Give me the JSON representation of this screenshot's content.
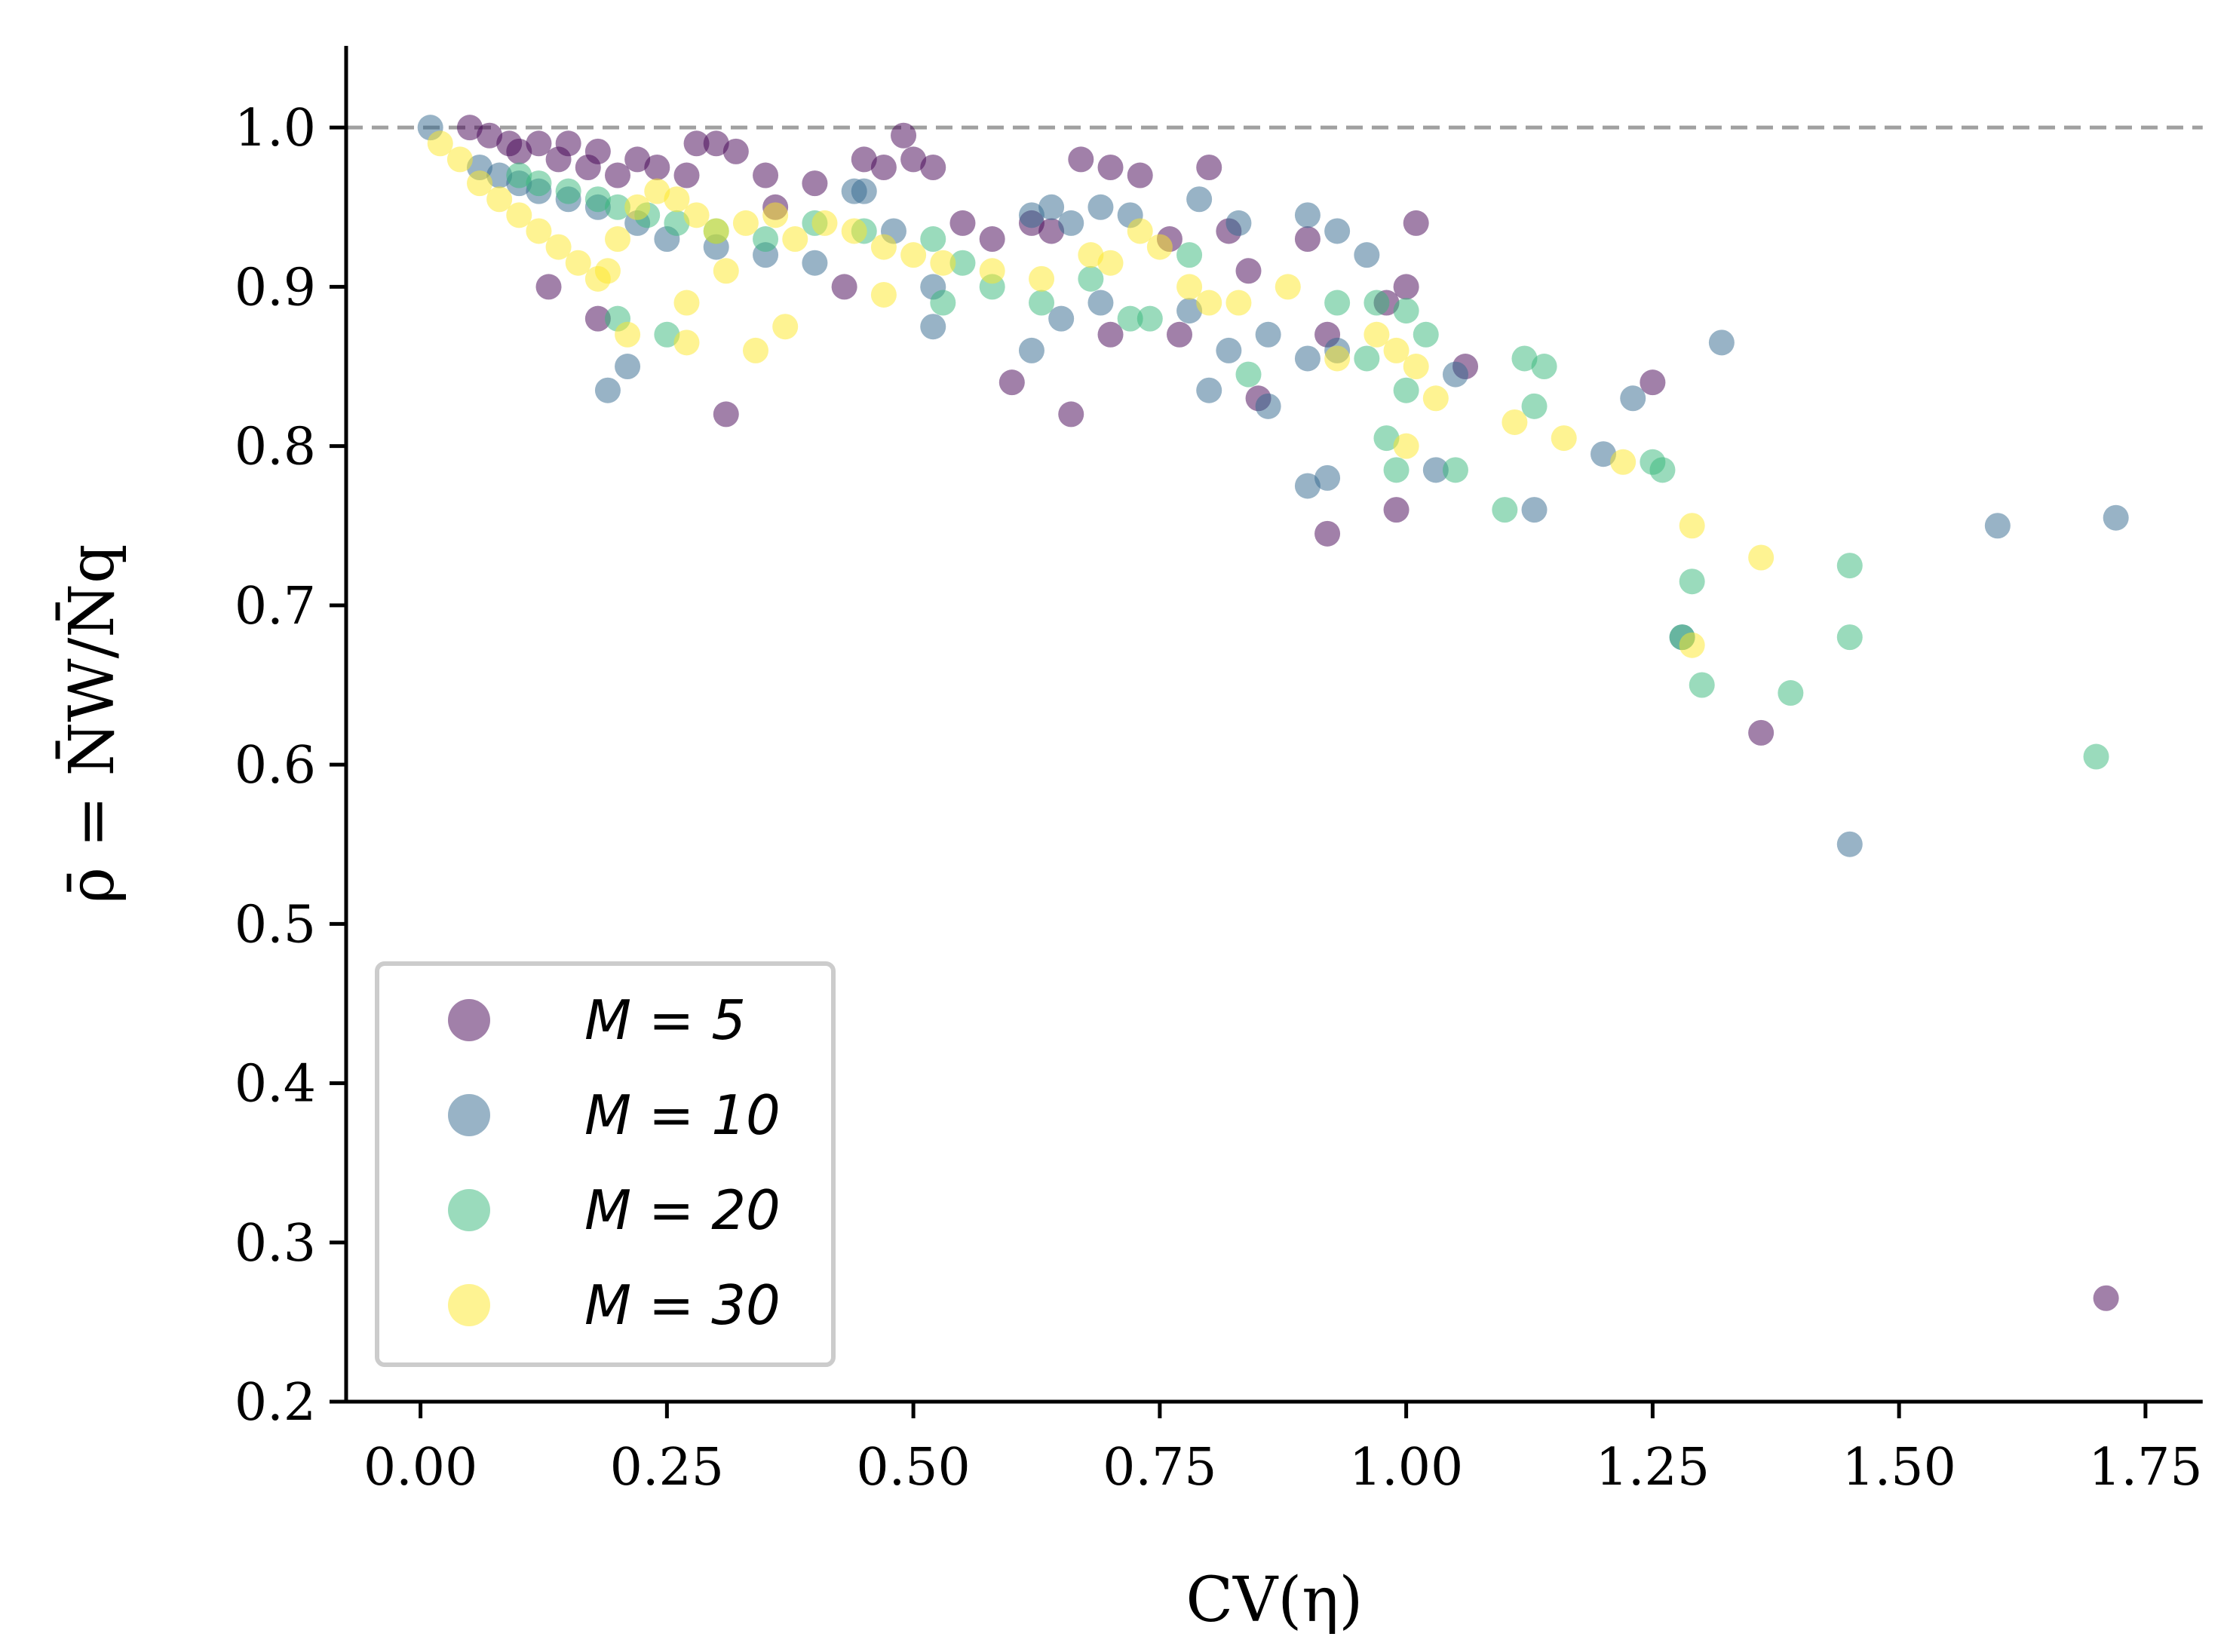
{
  "chart_data": {
    "type": "scatter",
    "title": "",
    "xlabel": "CV(η)",
    "ylabel": "ρ̄ = N̄W/N̄q",
    "xlim": [
      -0.075,
      1.81
    ],
    "ylim": [
      0.2,
      1.05
    ],
    "x_ticks": [
      "0.00",
      "0.25",
      "0.50",
      "0.75",
      "1.00",
      "1.25",
      "1.50",
      "1.75"
    ],
    "x_tick_values": [
      0,
      0.25,
      0.5,
      0.75,
      1.0,
      1.25,
      1.5,
      1.75
    ],
    "y_ticks": [
      "0.2",
      "0.3",
      "0.4",
      "0.5",
      "0.6",
      "0.7",
      "0.8",
      "0.9",
      "1.0"
    ],
    "y_tick_values": [
      0.2,
      0.3,
      0.4,
      0.5,
      0.6,
      0.7,
      0.8,
      0.9,
      1.0
    ],
    "reference_line": {
      "y": 1.0,
      "style": "dashed",
      "color": "#a0a0a0"
    },
    "legend_position": "lower-left",
    "series": [
      {
        "name": "M = 5",
        "color": "#440154",
        "points": [
          [
            0.05,
            1.0
          ],
          [
            0.07,
            0.995
          ],
          [
            0.09,
            0.99
          ],
          [
            0.1,
            0.985
          ],
          [
            0.12,
            0.99
          ],
          [
            0.14,
            0.98
          ],
          [
            0.15,
            0.99
          ],
          [
            0.17,
            0.975
          ],
          [
            0.18,
            0.985
          ],
          [
            0.2,
            0.97
          ],
          [
            0.22,
            0.98
          ],
          [
            0.24,
            0.975
          ],
          [
            0.27,
            0.97
          ],
          [
            0.3,
            0.99
          ],
          [
            0.32,
            0.985
          ],
          [
            0.35,
            0.97
          ],
          [
            0.4,
            0.965
          ],
          [
            0.45,
            0.98
          ],
          [
            0.47,
            0.975
          ],
          [
            0.49,
            0.995
          ],
          [
            0.5,
            0.98
          ],
          [
            0.52,
            0.975
          ],
          [
            0.55,
            0.94
          ],
          [
            0.58,
            0.93
          ],
          [
            0.62,
            0.94
          ],
          [
            0.64,
            0.935
          ],
          [
            0.67,
            0.98
          ],
          [
            0.7,
            0.975
          ],
          [
            0.73,
            0.97
          ],
          [
            0.76,
            0.93
          ],
          [
            0.8,
            0.975
          ],
          [
            0.82,
            0.935
          ],
          [
            0.84,
            0.91
          ],
          [
            0.9,
            0.93
          ],
          [
            0.92,
            0.87
          ],
          [
            0.98,
            0.89
          ],
          [
            1.01,
            0.94
          ],
          [
            1.0,
            0.9
          ],
          [
            1.06,
            0.85
          ],
          [
            0.13,
            0.9
          ],
          [
            0.18,
            0.88
          ],
          [
            0.31,
            0.82
          ],
          [
            0.6,
            0.84
          ],
          [
            0.66,
            0.82
          ],
          [
            0.7,
            0.87
          ],
          [
            0.77,
            0.87
          ],
          [
            0.85,
            0.83
          ],
          [
            0.92,
            0.745
          ],
          [
            0.99,
            0.76
          ],
          [
            1.25,
            0.84
          ],
          [
            1.36,
            0.62
          ],
          [
            1.71,
            0.265
          ],
          [
            0.28,
            0.99
          ],
          [
            0.36,
            0.95
          ],
          [
            0.43,
            0.9
          ]
        ]
      },
      {
        "name": "M = 10",
        "color": "#31688e",
        "points": [
          [
            0.01,
            1.0
          ],
          [
            0.06,
            0.975
          ],
          [
            0.08,
            0.97
          ],
          [
            0.1,
            0.965
          ],
          [
            0.12,
            0.96
          ],
          [
            0.15,
            0.955
          ],
          [
            0.18,
            0.95
          ],
          [
            0.22,
            0.94
          ],
          [
            0.25,
            0.93
          ],
          [
            0.3,
            0.925
          ],
          [
            0.35,
            0.92
          ],
          [
            0.4,
            0.915
          ],
          [
            0.45,
            0.96
          ],
          [
            0.48,
            0.935
          ],
          [
            0.52,
            0.9
          ],
          [
            0.52,
            0.875
          ],
          [
            0.62,
            0.945
          ],
          [
            0.64,
            0.95
          ],
          [
            0.66,
            0.94
          ],
          [
            0.69,
            0.95
          ],
          [
            0.72,
            0.945
          ],
          [
            0.79,
            0.955
          ],
          [
            0.83,
            0.94
          ],
          [
            0.9,
            0.945
          ],
          [
            0.93,
            0.935
          ],
          [
            0.96,
            0.92
          ],
          [
            0.62,
            0.86
          ],
          [
            0.65,
            0.88
          ],
          [
            0.69,
            0.89
          ],
          [
            0.78,
            0.885
          ],
          [
            0.86,
            0.87
          ],
          [
            0.9,
            0.855
          ],
          [
            0.93,
            0.86
          ],
          [
            0.8,
            0.835
          ],
          [
            0.82,
            0.86
          ],
          [
            0.86,
            0.825
          ],
          [
            0.9,
            0.775
          ],
          [
            0.92,
            0.78
          ],
          [
            1.03,
            0.785
          ],
          [
            1.05,
            0.845
          ],
          [
            1.13,
            0.76
          ],
          [
            1.2,
            0.795
          ],
          [
            1.23,
            0.83
          ],
          [
            1.28,
            0.68
          ],
          [
            1.32,
            0.865
          ],
          [
            1.45,
            0.55
          ],
          [
            1.6,
            0.75
          ],
          [
            1.72,
            0.755
          ],
          [
            0.19,
            0.835
          ],
          [
            0.21,
            0.85
          ],
          [
            0.44,
            0.96
          ]
        ]
      },
      {
        "name": "M = 20",
        "color": "#35b779",
        "points": [
          [
            0.1,
            0.97
          ],
          [
            0.12,
            0.965
          ],
          [
            0.15,
            0.96
          ],
          [
            0.18,
            0.955
          ],
          [
            0.2,
            0.95
          ],
          [
            0.23,
            0.945
          ],
          [
            0.26,
            0.94
          ],
          [
            0.3,
            0.935
          ],
          [
            0.35,
            0.93
          ],
          [
            0.4,
            0.94
          ],
          [
            0.45,
            0.935
          ],
          [
            0.52,
            0.93
          ],
          [
            0.55,
            0.915
          ],
          [
            0.58,
            0.9
          ],
          [
            0.63,
            0.89
          ],
          [
            0.68,
            0.905
          ],
          [
            0.72,
            0.88
          ],
          [
            0.74,
            0.88
          ],
          [
            0.78,
            0.92
          ],
          [
            0.84,
            0.845
          ],
          [
            0.93,
            0.89
          ],
          [
            0.97,
            0.89
          ],
          [
            1.0,
            0.885
          ],
          [
            1.02,
            0.87
          ],
          [
            0.96,
            0.855
          ],
          [
            1.0,
            0.835
          ],
          [
            0.98,
            0.805
          ],
          [
            0.99,
            0.785
          ],
          [
            1.05,
            0.785
          ],
          [
            1.1,
            0.76
          ],
          [
            1.12,
            0.855
          ],
          [
            1.13,
            0.825
          ],
          [
            1.14,
            0.85
          ],
          [
            1.25,
            0.79
          ],
          [
            1.26,
            0.785
          ],
          [
            1.29,
            0.715
          ],
          [
            1.28,
            0.68
          ],
          [
            1.3,
            0.65
          ],
          [
            1.39,
            0.645
          ],
          [
            1.45,
            0.725
          ],
          [
            1.45,
            0.68
          ],
          [
            1.7,
            0.605
          ],
          [
            0.25,
            0.87
          ],
          [
            0.2,
            0.88
          ],
          [
            0.53,
            0.89
          ]
        ]
      },
      {
        "name": "M = 30",
        "color": "#fde725",
        "points": [
          [
            0.02,
            0.99
          ],
          [
            0.04,
            0.98
          ],
          [
            0.06,
            0.965
          ],
          [
            0.08,
            0.955
          ],
          [
            0.1,
            0.945
          ],
          [
            0.12,
            0.935
          ],
          [
            0.14,
            0.925
          ],
          [
            0.16,
            0.915
          ],
          [
            0.18,
            0.905
          ],
          [
            0.2,
            0.93
          ],
          [
            0.22,
            0.95
          ],
          [
            0.24,
            0.96
          ],
          [
            0.26,
            0.955
          ],
          [
            0.28,
            0.945
          ],
          [
            0.3,
            0.935
          ],
          [
            0.33,
            0.94
          ],
          [
            0.36,
            0.945
          ],
          [
            0.38,
            0.93
          ],
          [
            0.41,
            0.94
          ],
          [
            0.44,
            0.935
          ],
          [
            0.47,
            0.925
          ],
          [
            0.5,
            0.92
          ],
          [
            0.53,
            0.915
          ],
          [
            0.58,
            0.91
          ],
          [
            0.63,
            0.905
          ],
          [
            0.68,
            0.92
          ],
          [
            0.7,
            0.915
          ],
          [
            0.73,
            0.935
          ],
          [
            0.75,
            0.925
          ],
          [
            0.78,
            0.9
          ],
          [
            0.8,
            0.89
          ],
          [
            0.83,
            0.89
          ],
          [
            0.88,
            0.9
          ],
          [
            0.93,
            0.855
          ],
          [
            0.97,
            0.87
          ],
          [
            0.99,
            0.86
          ],
          [
            1.01,
            0.85
          ],
          [
            1.03,
            0.83
          ],
          [
            1.0,
            0.8
          ],
          [
            1.11,
            0.815
          ],
          [
            1.16,
            0.805
          ],
          [
            1.22,
            0.79
          ],
          [
            1.29,
            0.75
          ],
          [
            1.29,
            0.675
          ],
          [
            1.36,
            0.73
          ],
          [
            0.21,
            0.87
          ],
          [
            0.27,
            0.865
          ],
          [
            0.34,
            0.86
          ],
          [
            0.37,
            0.875
          ],
          [
            0.27,
            0.89
          ],
          [
            0.47,
            0.895
          ],
          [
            0.31,
            0.91
          ],
          [
            0.19,
            0.91
          ]
        ]
      }
    ]
  },
  "legend": {
    "items": [
      {
        "label": "M = 5",
        "color": "#440154"
      },
      {
        "label": "M = 10",
        "color": "#31688e"
      },
      {
        "label": "M = 20",
        "color": "#35b779"
      },
      {
        "label": "M = 30",
        "color": "#fde725"
      }
    ]
  }
}
